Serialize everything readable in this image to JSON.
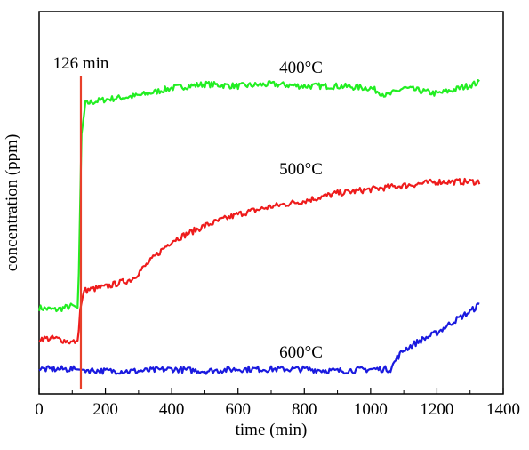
{
  "chart_data": {
    "type": "line",
    "xlabel": "time (min)",
    "ylabel": "concentration (ppm)",
    "xlim": [
      0,
      1400
    ],
    "ylim": [
      0,
      100
    ],
    "y_ticks_labeled": false,
    "grid": false,
    "xticks": [
      0,
      200,
      400,
      600,
      800,
      1000,
      1200,
      1400
    ],
    "xtick_labels": [
      "0",
      "200",
      "400",
      "600",
      "800",
      "1000",
      "1200",
      "1400"
    ],
    "marker": {
      "x": 126,
      "label": "126 min",
      "color": "#e8402a"
    },
    "series": [
      {
        "name": "400°C",
        "color": "#22ee22",
        "x": [
          0,
          50,
          100,
          118,
          124,
          128,
          140,
          200,
          300,
          400,
          450,
          500,
          600,
          700,
          800,
          900,
          1000,
          1050,
          1100,
          1200,
          1250,
          1330
        ],
        "y": [
          22.5,
          22,
          23,
          22.5,
          50,
          68,
          76,
          77,
          78,
          80,
          80.5,
          81,
          80.5,
          81,
          80.5,
          80.5,
          80,
          78,
          80,
          78.5,
          79.5,
          81.5
        ]
      },
      {
        "name": "500°C",
        "color": "#ee1c1c",
        "x": [
          0,
          50,
          100,
          118,
          124,
          135,
          200,
          280,
          350,
          400,
          500,
          600,
          700,
          800,
          900,
          1000,
          1100,
          1200,
          1250,
          1330
        ],
        "y": [
          14.5,
          14.5,
          13.5,
          14,
          22,
          27,
          28,
          30,
          36,
          40,
          44,
          47,
          49,
          50.5,
          52.5,
          53.5,
          54.5,
          55.5,
          55.5,
          55.5
        ]
      },
      {
        "name": "600°C",
        "color": "#1a1adf",
        "x": [
          0,
          100,
          200,
          300,
          400,
          500,
          600,
          700,
          800,
          900,
          1000,
          1060,
          1080,
          1100,
          1150,
          1200,
          1250,
          1300,
          1330
        ],
        "y": [
          6.5,
          6.5,
          6,
          6,
          6.5,
          6,
          6.5,
          6.5,
          6.5,
          6,
          6.5,
          6.5,
          9.5,
          11.5,
          14,
          16,
          19,
          21.5,
          23.5
        ]
      }
    ],
    "annotations": [
      {
        "text": "400°C",
        "x": 790,
        "y": 84
      },
      {
        "text": "500°C",
        "x": 790,
        "y": 57.5
      },
      {
        "text": "600°C",
        "x": 790,
        "y": 9.5
      }
    ]
  }
}
